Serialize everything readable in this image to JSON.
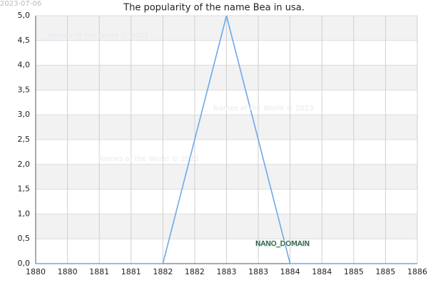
{
  "chart_data": {
    "type": "line",
    "title": "The popularity of the name Bea in usa.",
    "date_stamp": "2023-07-06",
    "watermarks": [
      "Names of the World © 2023",
      "Names of the World © 2023",
      "Names of the World © 2023"
    ],
    "domain_label": "NANO_DOMAIN",
    "x": [
      1880,
      1881,
      1882,
      1883,
      1884,
      1885,
      1886
    ],
    "series": [
      {
        "name": "Bea",
        "color": "#6aaaea",
        "values": [
          0,
          0,
          0,
          5,
          0,
          0,
          0
        ]
      }
    ],
    "xlim": [
      1880,
      1886
    ],
    "xticks": [
      1880,
      {
        "value": 1880.5,
        "label": "1880"
      },
      1881,
      {
        "value": 1881.5,
        "label": "1881"
      },
      1882,
      {
        "value": 1882.5,
        "label": "1882"
      },
      1883,
      {
        "value": 1883.5,
        "label": "1883"
      },
      1884,
      {
        "value": 1884.5,
        "label": "1884"
      },
      1885,
      {
        "value": 1885.5,
        "label": "1885"
      },
      1886
    ],
    "ylim": [
      0,
      5
    ],
    "yticks": [
      {
        "value": 0,
        "label": "0,0"
      },
      {
        "value": 0.5,
        "label": "0,5"
      },
      {
        "value": 1,
        "label": "1,0"
      },
      {
        "value": 1.5,
        "label": "1,5"
      },
      {
        "value": 2,
        "label": "2,0"
      },
      {
        "value": 2.5,
        "label": "2,5"
      },
      {
        "value": 3,
        "label": "3,0"
      },
      {
        "value": 3.5,
        "label": "3,5"
      },
      {
        "value": 4,
        "label": "4,0"
      },
      {
        "value": 4.5,
        "label": "4,5"
      },
      {
        "value": 5,
        "label": "5,0"
      }
    ],
    "grid": true
  }
}
